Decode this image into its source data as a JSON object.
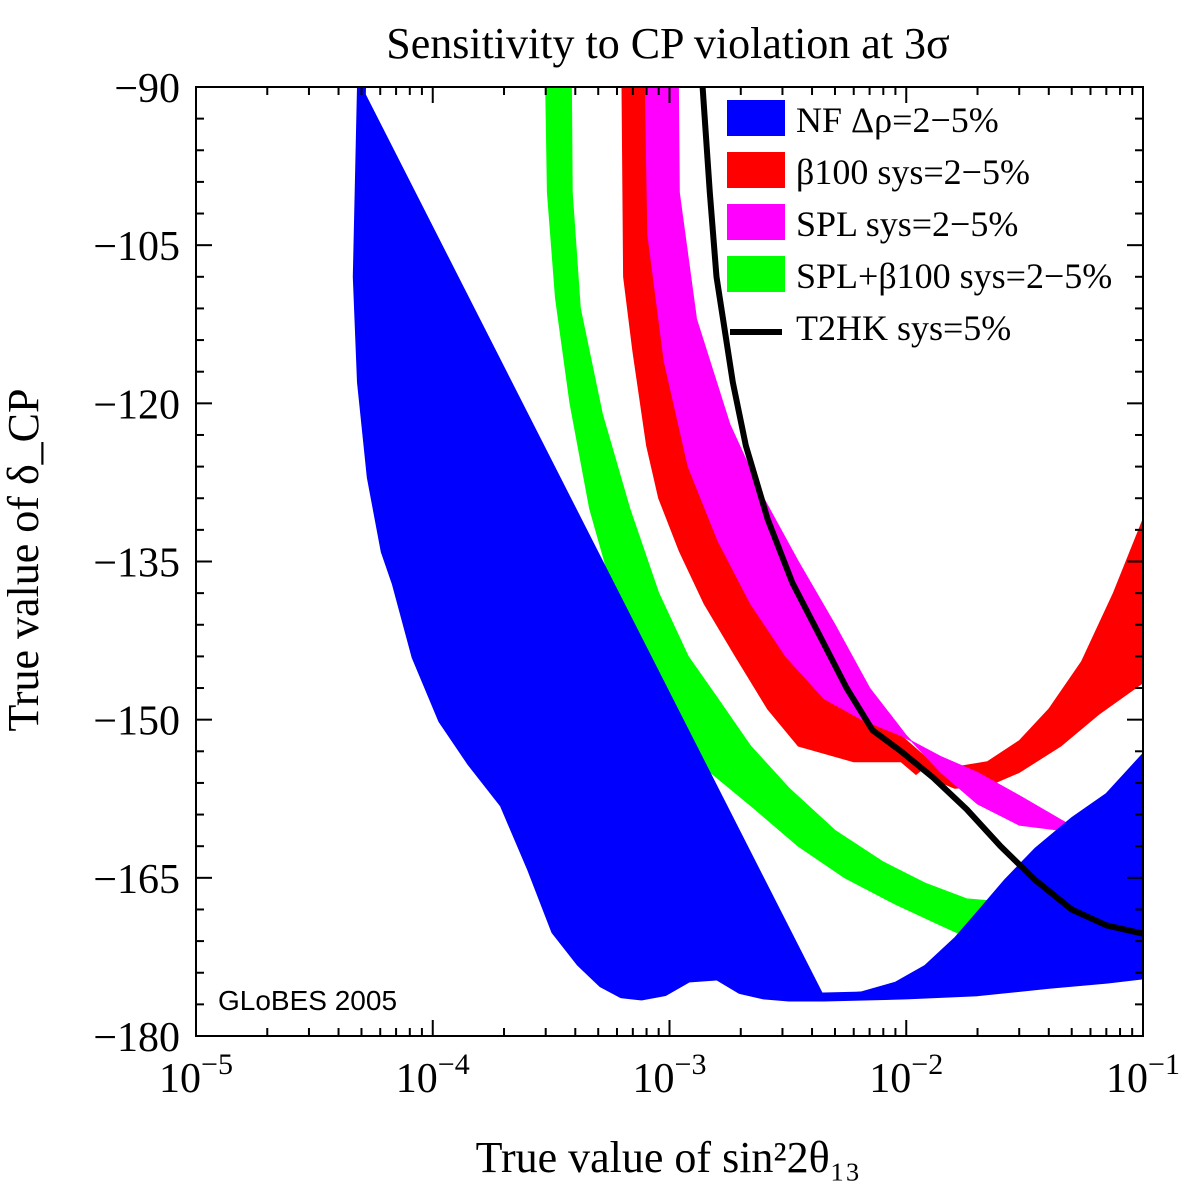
{
  "chart_data": {
    "type": "area",
    "title": "Sensitivity to CP violation at 3σ",
    "xlabel": "True value of sin²2θ₁₃",
    "ylabel": "True value of δ_CP",
    "x_scale": "log",
    "xlim": [
      1e-05,
      0.1
    ],
    "ylim": [
      -180,
      -90
    ],
    "x_tick_labels": [
      {
        "base": "10",
        "exp": "−5",
        "value": 1e-05
      },
      {
        "base": "10",
        "exp": "−4",
        "value": 0.0001
      },
      {
        "base": "10",
        "exp": "−3",
        "value": 0.001
      },
      {
        "base": "10",
        "exp": "−2",
        "value": 0.01
      },
      {
        "base": "10",
        "exp": "−1",
        "value": 0.1
      }
    ],
    "y_ticks": [
      -90,
      -105,
      -120,
      -135,
      -150,
      -165,
      -180
    ],
    "y_tick_labels": [
      "−90",
      "−105",
      "−120",
      "−135",
      "−150",
      "−165",
      "−180"
    ],
    "annotation": "GLoBES 2005",
    "grid": false,
    "legend_position": "top-right",
    "series": [
      {
        "name": "NF Δρ=2−5%",
        "kind": "band",
        "color": "#0000ff",
        "edge_a": [
          [
            5e-05,
            -90
          ],
          [
            4.8e-05,
            -108
          ],
          [
            5e-05,
            -118
          ],
          [
            5.5e-05,
            -127
          ],
          [
            6.3e-05,
            -134
          ],
          [
            7e-05,
            -137
          ],
          [
            8.5e-05,
            -144
          ],
          [
            0.00011,
            -150
          ],
          [
            0.000145,
            -154
          ],
          [
            0.0002,
            -158
          ],
          [
            0.00026,
            -164
          ],
          [
            0.00033,
            -170
          ],
          [
            0.00042,
            -173
          ],
          [
            0.00052,
            -175
          ],
          [
            0.00063,
            -176
          ],
          [
            0.00076,
            -176.2
          ],
          [
            0.00095,
            -175.8
          ],
          [
            0.0012,
            -174.5
          ],
          [
            0.0016,
            -174.3
          ],
          [
            0.002,
            -175.6
          ],
          [
            0.0025,
            -176.1
          ],
          [
            0.0032,
            -176.3
          ],
          [
            0.0045,
            -176.3
          ],
          [
            0.007,
            -176.2
          ],
          [
            0.01,
            -176.1
          ],
          [
            0.02,
            -175.8
          ],
          [
            0.04,
            -175.1
          ],
          [
            0.07,
            -174.6
          ],
          [
            0.1,
            -174.2
          ]
        ],
        "edge_b": [
          [
            0.0045,
            -176.3
          ],
          [
            0.0065,
            -175.8
          ],
          [
            0.009,
            -174.9
          ],
          [
            0.012,
            -173.3
          ],
          [
            0.016,
            -170.7
          ],
          [
            0.02,
            -168.2
          ],
          [
            0.026,
            -165.2
          ],
          [
            0.035,
            -162.2
          ],
          [
            0.05,
            -159.3
          ],
          [
            0.07,
            -157
          ],
          [
            0.1,
            -153.2
          ]
        ]
      },
      {
        "name": "β100 sys=2−5%",
        "kind": "band",
        "color": "#ff0000",
        "edge_a": [
          [
            0.00063,
            -90
          ],
          [
            0.00064,
            -108
          ],
          [
            0.0007,
            -115
          ],
          [
            0.0008,
            -124
          ],
          [
            0.0009,
            -129
          ],
          [
            0.0011,
            -134
          ],
          [
            0.0014,
            -139
          ],
          [
            0.0019,
            -144
          ],
          [
            0.0026,
            -149
          ],
          [
            0.0035,
            -152.5
          ],
          [
            0.006,
            -154
          ],
          [
            0.0095,
            -154
          ],
          [
            0.011,
            -155.2
          ],
          [
            0.012,
            -154.5
          ],
          [
            0.0135,
            -155.8
          ],
          [
            0.016,
            -156.5
          ],
          [
            0.022,
            -156.3
          ],
          [
            0.03,
            -155
          ],
          [
            0.045,
            -152.5
          ],
          [
            0.065,
            -149.5
          ],
          [
            0.1,
            -146.5
          ]
        ],
        "edge_b": [
          [
            0.00079,
            -90
          ],
          [
            0.00081,
            -104
          ],
          [
            0.00095,
            -116
          ],
          [
            0.0012,
            -126
          ],
          [
            0.0016,
            -133
          ],
          [
            0.0022,
            -139
          ],
          [
            0.0031,
            -144
          ],
          [
            0.0045,
            -148
          ],
          [
            0.0065,
            -150
          ],
          [
            0.0095,
            -151.5
          ],
          [
            0.012,
            -153.5
          ],
          [
            0.016,
            -154.5
          ],
          [
            0.022,
            -154
          ],
          [
            0.03,
            -152
          ],
          [
            0.04,
            -149
          ],
          [
            0.055,
            -144.5
          ],
          [
            0.075,
            -138
          ],
          [
            0.1,
            -131
          ]
        ]
      },
      {
        "name": "SPL sys=2−5%",
        "kind": "band",
        "color": "#ff00ff",
        "edge_a": [
          [
            0.00079,
            -90
          ],
          [
            0.00081,
            -104
          ],
          [
            0.00095,
            -116
          ],
          [
            0.0012,
            -126
          ],
          [
            0.0016,
            -133
          ],
          [
            0.0022,
            -139
          ],
          [
            0.0031,
            -144
          ],
          [
            0.0045,
            -148
          ],
          [
            0.0065,
            -150
          ],
          [
            0.0095,
            -151.5
          ],
          [
            0.014,
            -153.5
          ],
          [
            0.02,
            -155
          ],
          [
            0.03,
            -157.2
          ],
          [
            0.045,
            -159.5
          ],
          [
            0.065,
            -161.5
          ],
          [
            0.1,
            -162.5
          ]
        ],
        "edge_b": [
          [
            0.00109,
            -90
          ],
          [
            0.0011,
            -100
          ],
          [
            0.0013,
            -112
          ],
          [
            0.0018,
            -122
          ],
          [
            0.0025,
            -129
          ],
          [
            0.0035,
            -135
          ],
          [
            0.005,
            -141
          ],
          [
            0.007,
            -147
          ],
          [
            0.01,
            -151.5
          ],
          [
            0.014,
            -155
          ],
          [
            0.02,
            -158
          ],
          [
            0.03,
            -160
          ],
          [
            0.045,
            -160.5
          ],
          [
            0.06,
            -158.5
          ],
          [
            0.1,
            -155
          ]
        ]
      },
      {
        "name": "SPL+β100 sys=2−5%",
        "kind": "band",
        "color": "#00ff00",
        "edge_a": [
          [
            0.0003,
            -90
          ],
          [
            0.000305,
            -100
          ],
          [
            0.00033,
            -110
          ],
          [
            0.00038,
            -120
          ],
          [
            0.00046,
            -130
          ],
          [
            0.00058,
            -138
          ],
          [
            0.00076,
            -145
          ],
          [
            0.001,
            -150
          ],
          [
            0.0014,
            -154.5
          ],
          [
            0.0023,
            -158.5
          ],
          [
            0.0035,
            -162
          ],
          [
            0.0055,
            -165
          ],
          [
            0.009,
            -167.5
          ],
          [
            0.014,
            -169.5
          ],
          [
            0.022,
            -171.5
          ],
          [
            0.035,
            -172.3
          ],
          [
            0.055,
            -172.3
          ],
          [
            0.1,
            -171.8
          ]
        ],
        "edge_b": [
          [
            0.000385,
            -90
          ],
          [
            0.000388,
            -100
          ],
          [
            0.00042,
            -111
          ],
          [
            0.00052,
            -121
          ],
          [
            0.00068,
            -130
          ],
          [
            0.0009,
            -138
          ],
          [
            0.0012,
            -144
          ],
          [
            0.0016,
            -148
          ],
          [
            0.0022,
            -152.5
          ],
          [
            0.0032,
            -156.5
          ],
          [
            0.005,
            -160.5
          ],
          [
            0.008,
            -163.5
          ],
          [
            0.012,
            -165.5
          ],
          [
            0.018,
            -167
          ],
          [
            0.026,
            -167.3
          ],
          [
            0.04,
            -166.5
          ],
          [
            0.06,
            -164
          ],
          [
            0.1,
            -160
          ]
        ]
      },
      {
        "name": "T2HK sys=5%",
        "kind": "line",
        "color": "#000000",
        "points": [
          [
            0.00138,
            -90
          ],
          [
            0.00148,
            -100
          ],
          [
            0.00158,
            -108
          ],
          [
            0.00185,
            -118
          ],
          [
            0.0021,
            -124
          ],
          [
            0.0026,
            -131
          ],
          [
            0.0033,
            -137
          ],
          [
            0.0043,
            -142
          ],
          [
            0.0056,
            -147
          ],
          [
            0.0072,
            -151
          ],
          [
            0.0095,
            -153
          ],
          [
            0.013,
            -155.5
          ],
          [
            0.018,
            -158.5
          ],
          [
            0.025,
            -162
          ],
          [
            0.035,
            -165.2
          ],
          [
            0.05,
            -168
          ],
          [
            0.07,
            -169.5
          ],
          [
            0.1,
            -170.3
          ]
        ]
      }
    ]
  }
}
